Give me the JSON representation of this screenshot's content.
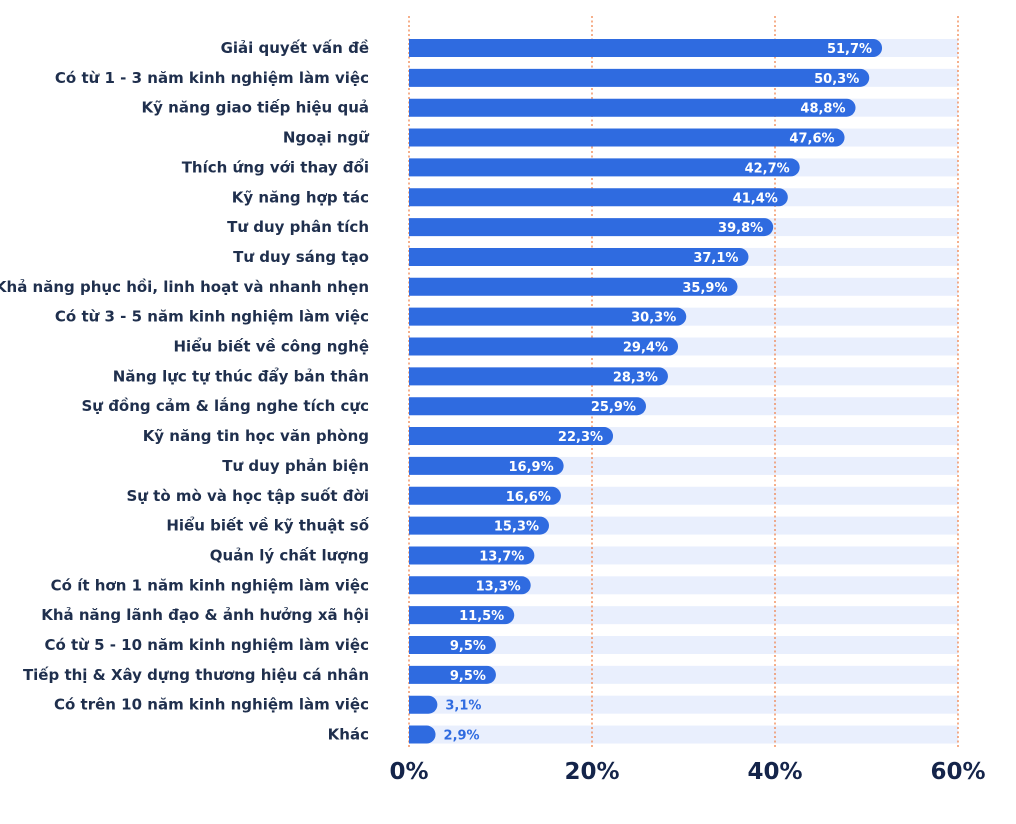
{
  "colors": {
    "bar": "#2f6be0",
    "track": "#e9effd",
    "gridline": "#f07a3e",
    "label_text": "#1f2f4d",
    "value_text_inside": "#ffffff",
    "value_text_outside": "#2f6be0",
    "tick_text": "#14244a"
  },
  "chart_data": {
    "type": "bar",
    "orientation": "horizontal",
    "categories": [
      "Giải quyết vấn đề",
      "Có từ 1 - 3 năm kinh nghiệm làm việc",
      "Kỹ năng giao tiếp hiệu quả",
      "Ngoại ngữ",
      "Thích ứng với thay đổi",
      "Kỹ năng hợp tác",
      "Tư duy phân tích",
      "Tư duy sáng tạo",
      "Khả năng phục hồi, linh hoạt và nhanh nhẹn",
      "Có từ 3 - 5 năm kinh nghiệm làm việc",
      "Hiểu biết về công nghệ",
      "Năng lực tự thúc đẩy bản thân",
      "Sự đồng cảm & lắng nghe tích cực",
      "Kỹ năng tin học văn phòng",
      "Tư duy phản biện",
      "Sự tò mò và học tập suốt đời",
      "Hiểu biết về kỹ thuật số",
      "Quản lý chất lượng",
      "Có ít hơn 1 năm kinh nghiệm làm việc",
      "Khả năng lãnh đạo & ảnh hưởng xã hội",
      "Có từ 5 - 10 năm kinh nghiệm làm việc",
      "Tiếp thị & Xây dựng thương hiệu cá nhân",
      "Có trên 10 năm kinh nghiệm làm việc",
      "Khác"
    ],
    "values": [
      51.7,
      50.3,
      48.8,
      47.6,
      42.7,
      41.4,
      39.8,
      37.1,
      35.9,
      30.3,
      29.4,
      28.3,
      25.9,
      22.3,
      16.9,
      16.6,
      15.3,
      13.7,
      13.3,
      11.5,
      9.5,
      9.5,
      3.1,
      2.9
    ],
    "value_labels": [
      "51,7%",
      "50,3%",
      "48,8%",
      "47,6%",
      "42,7%",
      "41,4%",
      "39,8%",
      "37,1%",
      "35,9%",
      "30,3%",
      "29,4%",
      "28,3%",
      "25,9%",
      "22,3%",
      "16,9%",
      "16,6%",
      "15,3%",
      "13,7%",
      "13,3%",
      "11,5%",
      "9,5%",
      "9,5%",
      "3,1%",
      "2,9%"
    ],
    "xlim": [
      0,
      60
    ],
    "ticks": [
      0,
      20,
      40,
      60
    ],
    "tick_labels": [
      "0%",
      "20%",
      "40%",
      "60%"
    ],
    "grid": true,
    "title": "",
    "xlabel": "",
    "ylabel": ""
  }
}
